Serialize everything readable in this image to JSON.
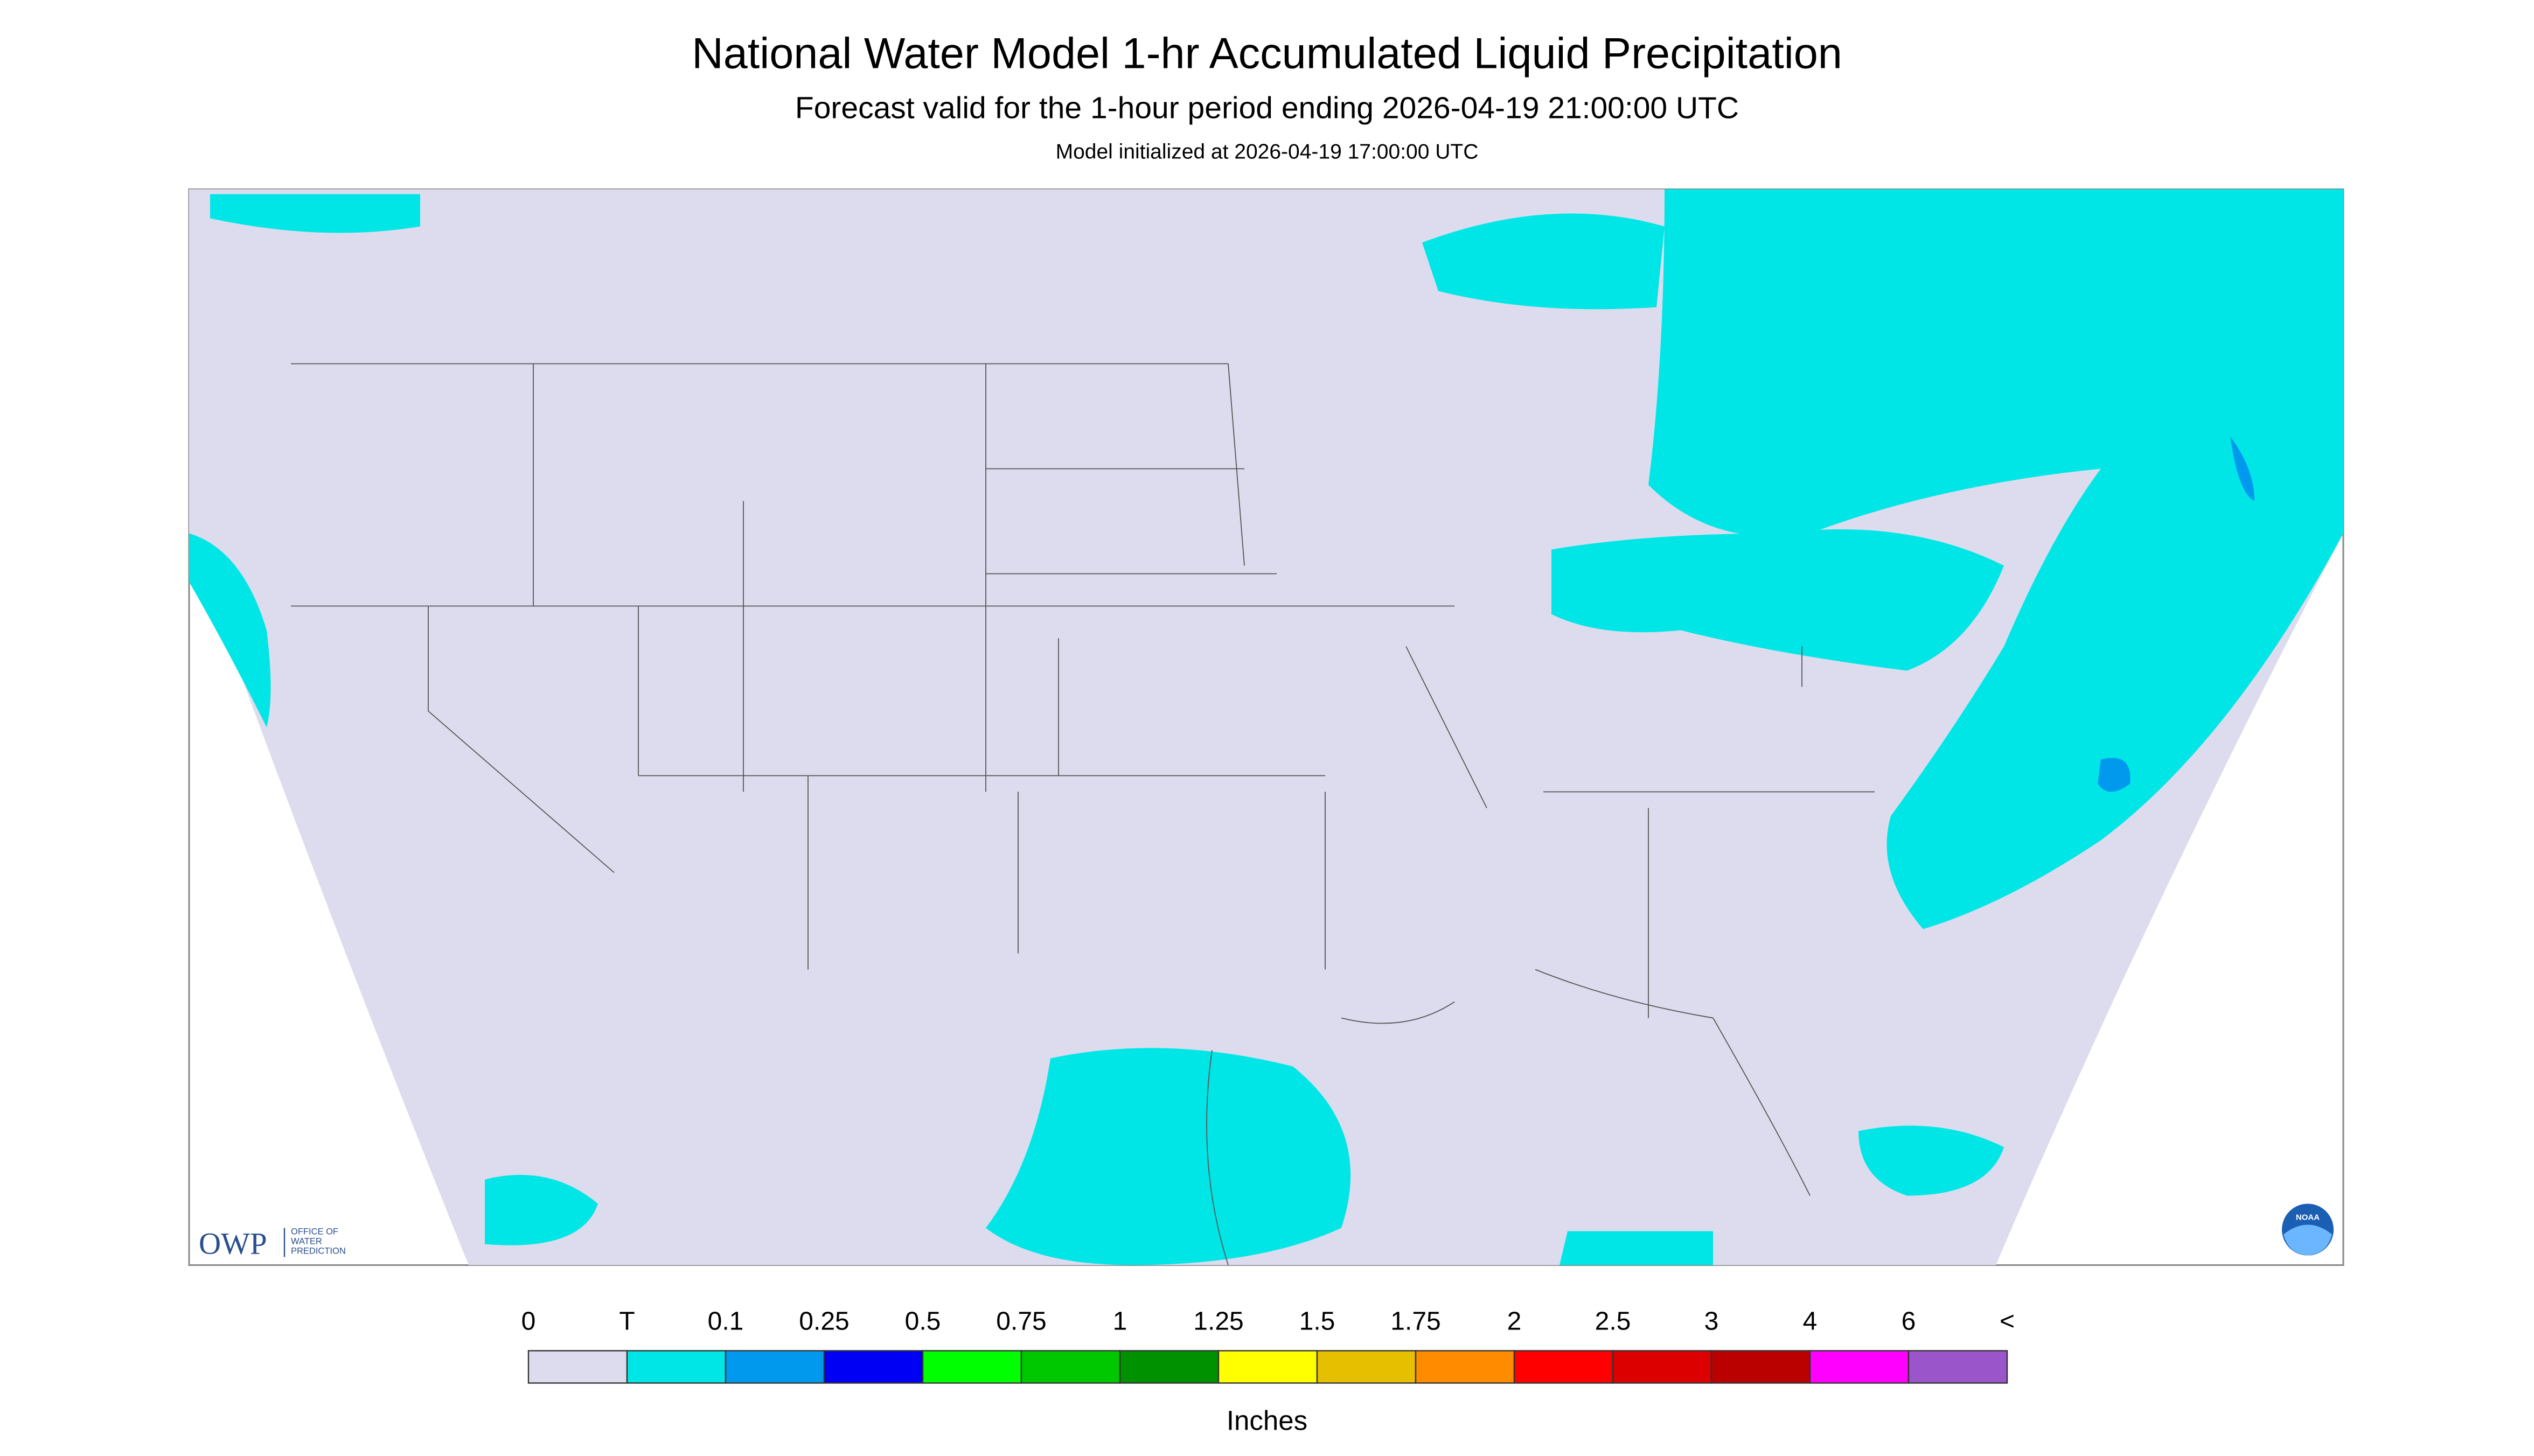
{
  "header": {
    "title": "National Water Model 1-hr Accumulated Liquid Precipitation",
    "subtitle": "Forecast valid for the 1-hour period ending 2026-04-19 21:00:00 UTC",
    "note": "Model initialized at 2026-04-19 17:00:00 UTC"
  },
  "logo": {
    "abbr": "OWP",
    "name": [
      "OFFICE OF",
      "WATER",
      "PREDICTION"
    ],
    "agency": "NOAA"
  },
  "legend": {
    "labels": [
      "0",
      "T",
      "0.1",
      "0.25",
      "0.5",
      "0.75",
      "1",
      "1.25",
      "1.5",
      "1.75",
      "2",
      "2.5",
      "3",
      "4",
      "6",
      "<"
    ],
    "colors": [
      "#dcdcee",
      "#00e6e6",
      "#0099ee",
      "#0000f5",
      "#00ff00",
      "#00c800",
      "#009100",
      "#ffff00",
      "#e6c000",
      "#ff8c00",
      "#ff0000",
      "#dc0000",
      "#bb0000",
      "#ff00ff",
      "#9955c9"
    ],
    "unit": "Inches"
  }
}
